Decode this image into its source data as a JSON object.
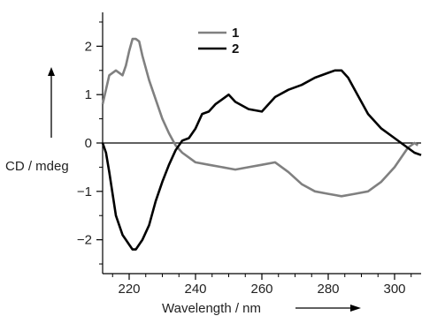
{
  "chart_data": {
    "type": "line",
    "title": "",
    "xlabel": "Wavelength / nm",
    "ylabel": "CD / mdeg",
    "xlim": [
      212,
      308
    ],
    "ylim": [
      -2.7,
      2.7
    ],
    "x_ticks": [
      220,
      240,
      260,
      280,
      300
    ],
    "y_ticks": [
      -2,
      -1,
      0,
      1,
      2
    ],
    "x_tick_labels": [
      "220",
      "240",
      "260",
      "280",
      "300"
    ],
    "y_tick_labels": [
      "−2",
      "−1",
      "0",
      "1",
      "2"
    ],
    "grid": false,
    "zero_line": true,
    "legend_position": "top-center",
    "series": [
      {
        "name": "1",
        "color": "#808080",
        "x": [
          212,
          214,
          216,
          218,
          219,
          220,
          221,
          222,
          223,
          224,
          226,
          228,
          230,
          232,
          234,
          236,
          238,
          240,
          244,
          248,
          252,
          256,
          260,
          264,
          268,
          272,
          276,
          280,
          284,
          288,
          292,
          296,
          300,
          304,
          306,
          307
        ],
        "y": [
          0.8,
          1.4,
          1.5,
          1.4,
          1.6,
          1.9,
          2.15,
          2.15,
          2.1,
          1.8,
          1.3,
          0.9,
          0.5,
          0.2,
          -0.05,
          -0.2,
          -0.3,
          -0.4,
          -0.45,
          -0.5,
          -0.55,
          -0.5,
          -0.45,
          -0.4,
          -0.6,
          -0.85,
          -1.0,
          -1.05,
          -1.1,
          -1.05,
          -1.0,
          -0.8,
          -0.5,
          -0.1,
          0.0,
          -0.05
        ]
      },
      {
        "name": "2",
        "color": "#000000",
        "x": [
          212,
          213,
          214,
          216,
          218,
          219,
          220,
          221,
          222,
          224,
          226,
          228,
          230,
          232,
          234,
          236,
          238,
          240,
          242,
          244,
          246,
          248,
          250,
          252,
          256,
          260,
          264,
          268,
          272,
          276,
          280,
          282,
          284,
          286,
          288,
          292,
          296,
          300,
          304,
          306,
          308
        ],
        "y": [
          0.0,
          -0.2,
          -0.6,
          -1.5,
          -1.9,
          -2.0,
          -2.1,
          -2.2,
          -2.2,
          -2.0,
          -1.7,
          -1.2,
          -0.8,
          -0.45,
          -0.15,
          0.05,
          0.1,
          0.3,
          0.6,
          0.65,
          0.8,
          0.9,
          1.0,
          0.85,
          0.7,
          0.65,
          0.95,
          1.1,
          1.2,
          1.35,
          1.45,
          1.5,
          1.5,
          1.35,
          1.1,
          0.6,
          0.3,
          0.1,
          -0.1,
          -0.2,
          -0.25
        ]
      }
    ]
  }
}
